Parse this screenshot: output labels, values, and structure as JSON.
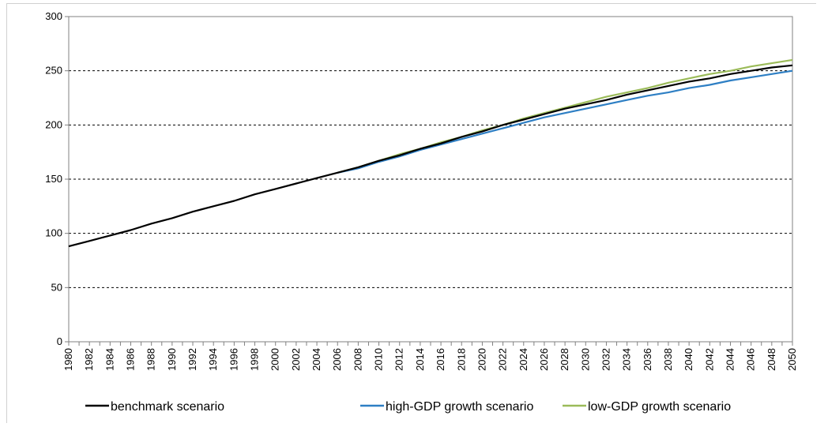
{
  "chart_data": {
    "type": "line",
    "title": "",
    "xlabel": "",
    "ylabel": "",
    "ylim": [
      0,
      300
    ],
    "xlim": [
      1980,
      2050
    ],
    "yticks": [
      0,
      50,
      100,
      150,
      200,
      250,
      300
    ],
    "ytick_labels": [
      "0",
      "50",
      "100",
      "150",
      "200",
      "250",
      "300"
    ],
    "xtick_labels": [
      "1980",
      "1982",
      "1984",
      "1986",
      "1988",
      "1990",
      "1992",
      "1994",
      "1996",
      "1998",
      "2000",
      "2002",
      "2004",
      "2006",
      "2008",
      "2010",
      "2012",
      "2014",
      "2016",
      "2018",
      "2020",
      "2022",
      "2024",
      "2026",
      "2028",
      "2030",
      "2032",
      "2034",
      "2036",
      "2038",
      "2040",
      "2042",
      "2044",
      "2046",
      "2048",
      "2050"
    ],
    "grid": "horizontal dashed",
    "legend_position": "bottom",
    "series": [
      {
        "name": "benchmark scenario",
        "color": "#000000",
        "x": [
          1980,
          1982,
          1984,
          1986,
          1988,
          1990,
          1992,
          1994,
          1996,
          1998,
          2000,
          2002,
          2004,
          2006,
          2008,
          2010,
          2012,
          2014,
          2016,
          2018,
          2020,
          2022,
          2024,
          2026,
          2028,
          2030,
          2032,
          2034,
          2036,
          2038,
          2040,
          2042,
          2044,
          2046,
          2048,
          2050
        ],
        "y": [
          88,
          93,
          98,
          103,
          109,
          114,
          120,
          125,
          130,
          136,
          141,
          146,
          151,
          156,
          161,
          167,
          172,
          178,
          183,
          189,
          194,
          200,
          205,
          210,
          215,
          219,
          223,
          228,
          232,
          236,
          240,
          243,
          247,
          250,
          253,
          255
        ]
      },
      {
        "name": "high-GDP growth scenario",
        "color": "#2e7fc4",
        "x": [
          2006,
          2008,
          2010,
          2012,
          2014,
          2016,
          2018,
          2020,
          2022,
          2024,
          2026,
          2028,
          2030,
          2032,
          2034,
          2036,
          2038,
          2040,
          2042,
          2044,
          2046,
          2048,
          2050
        ],
        "y": [
          156,
          160,
          166,
          171,
          177,
          182,
          187,
          192,
          197,
          202,
          207,
          211,
          215,
          219,
          223,
          227,
          230,
          234,
          237,
          241,
          244,
          247,
          250
        ]
      },
      {
        "name": "low-GDP growth scenario",
        "color": "#9bbb59",
        "x": [
          2006,
          2008,
          2010,
          2012,
          2014,
          2016,
          2018,
          2020,
          2022,
          2024,
          2026,
          2028,
          2030,
          2032,
          2034,
          2036,
          2038,
          2040,
          2042,
          2044,
          2046,
          2048,
          2050
        ],
        "y": [
          156,
          161,
          167,
          173,
          178,
          184,
          189,
          195,
          200,
          206,
          211,
          216,
          221,
          226,
          230,
          234,
          239,
          243,
          247,
          250,
          254,
          257,
          260
        ]
      }
    ]
  }
}
